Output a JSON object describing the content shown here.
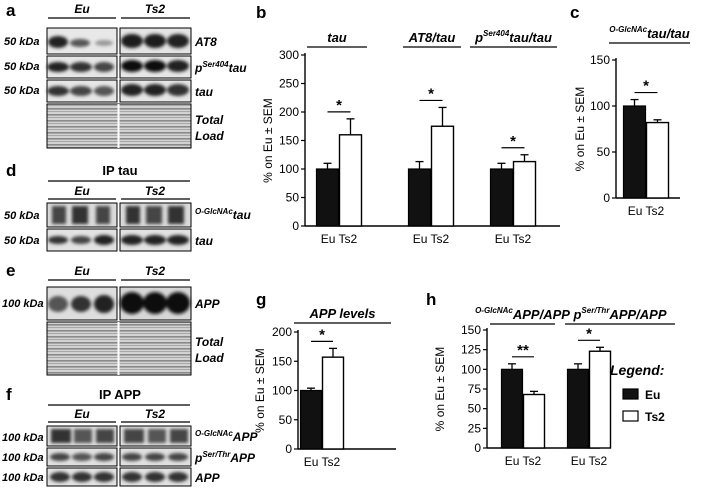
{
  "panel_letters": [
    "a",
    "b",
    "c",
    "d",
    "e",
    "f",
    "g",
    "h"
  ],
  "groups": {
    "eu": "Eu",
    "ts2": "Ts2"
  },
  "blot_a": {
    "rows": [
      {
        "kda": "50 kDa",
        "label": "AT8"
      },
      {
        "kda": "50 kDa",
        "label_pre": "p",
        "label_sup": "Ser404",
        "label_post": "tau"
      },
      {
        "kda": "50 kDa",
        "label": "tau"
      }
    ],
    "load_line1": "Total",
    "load_line2": "Load"
  },
  "blot_d": {
    "header": "IP tau",
    "rows": [
      {
        "kda": "50 kDa",
        "label_pre": "",
        "label_sup": "O-GlcNAc",
        "label_post": "tau"
      },
      {
        "kda": "50 kDa",
        "label": "tau"
      }
    ]
  },
  "blot_e": {
    "rows": [
      {
        "kda": "100 kDa",
        "label": "APP"
      }
    ],
    "load_line1": "Total",
    "load_line2": "Load"
  },
  "blot_f": {
    "header": "IP APP",
    "rows": [
      {
        "kda": "100 kDa",
        "label_pre": "",
        "label_sup": "O-GlcNAc",
        "label_post": "APP"
      },
      {
        "kda": "100 kDa",
        "label_pre": "p",
        "label_sup": "Ser/Thr",
        "label_post": "APP"
      },
      {
        "kda": "100 kDa",
        "label": "APP"
      }
    ]
  },
  "legend": {
    "title": "Legend:",
    "entries": [
      {
        "name": "Eu",
        "fill": "#111111"
      },
      {
        "name": "Ts2",
        "fill": "#ffffff"
      }
    ]
  },
  "colors": {
    "eu": "#111111",
    "ts2": "#ffffff",
    "axis": "#000000"
  },
  "chart_data": [
    {
      "panel": "b",
      "type": "bar",
      "ylabel": "% on Eu ± SEM",
      "ylim": [
        0,
        300
      ],
      "yticks": [
        0,
        50,
        100,
        150,
        200,
        250,
        300
      ],
      "xlabel_groups": [
        "Eu Ts2",
        "Eu Ts2",
        "Eu Ts2"
      ],
      "groups": [
        {
          "title_pre": "tau",
          "title_sup": "",
          "title_post": "",
          "eu": 100,
          "eu_err": 10,
          "ts2": 160,
          "ts2_err": 28,
          "sig": "*"
        },
        {
          "title_pre": "AT8/tau",
          "title_sup": "",
          "title_post": "",
          "eu": 100,
          "eu_err": 13,
          "ts2": 175,
          "ts2_err": 33,
          "sig": "*"
        },
        {
          "title_pre": "p",
          "title_sup": "Ser404",
          "title_post": "tau/tau",
          "eu": 100,
          "eu_err": 10,
          "ts2": 113,
          "ts2_err": 12,
          "sig": "*"
        }
      ]
    },
    {
      "panel": "c",
      "type": "bar",
      "ylabel": "% on Eu ± SEM",
      "ylim": [
        0,
        150
      ],
      "yticks": [
        0,
        50,
        100,
        150
      ],
      "xlabel_groups": [
        "Eu Ts2"
      ],
      "groups": [
        {
          "title_pre": "",
          "title_sup": "O-GlcNAc",
          "title_post": "tau/tau",
          "eu": 100,
          "eu_err": 7,
          "ts2": 82,
          "ts2_err": 3,
          "sig": "*"
        }
      ]
    },
    {
      "panel": "g",
      "type": "bar",
      "ylabel": "% on Eu ± SEM",
      "ylim": [
        0,
        200
      ],
      "yticks": [
        0,
        50,
        100,
        150,
        200
      ],
      "xlabel_groups": [
        "Eu Ts2"
      ],
      "groups": [
        {
          "title_pre": "APP levels",
          "title_sup": "",
          "title_post": "",
          "eu": 100,
          "eu_err": 4,
          "ts2": 157,
          "ts2_err": 15,
          "sig": "*"
        }
      ]
    },
    {
      "panel": "h",
      "type": "bar",
      "ylabel": "% on Eu ± SEM",
      "ylim": [
        0,
        150
      ],
      "yticks": [
        0,
        25,
        50,
        75,
        100,
        125,
        150
      ],
      "xlabel_groups": [
        "Eu Ts2",
        "Eu Ts2"
      ],
      "groups": [
        {
          "title_pre": "",
          "title_sup": "O-GlcNAc",
          "title_post": "APP/APP",
          "eu": 100,
          "eu_err": 7,
          "ts2": 68,
          "ts2_err": 4,
          "sig": "**"
        },
        {
          "title_pre": "p",
          "title_sup": "Ser/Thr",
          "title_post": "APP/APP",
          "eu": 100,
          "eu_err": 7,
          "ts2": 123,
          "ts2_err": 5,
          "sig": "*"
        }
      ]
    }
  ]
}
